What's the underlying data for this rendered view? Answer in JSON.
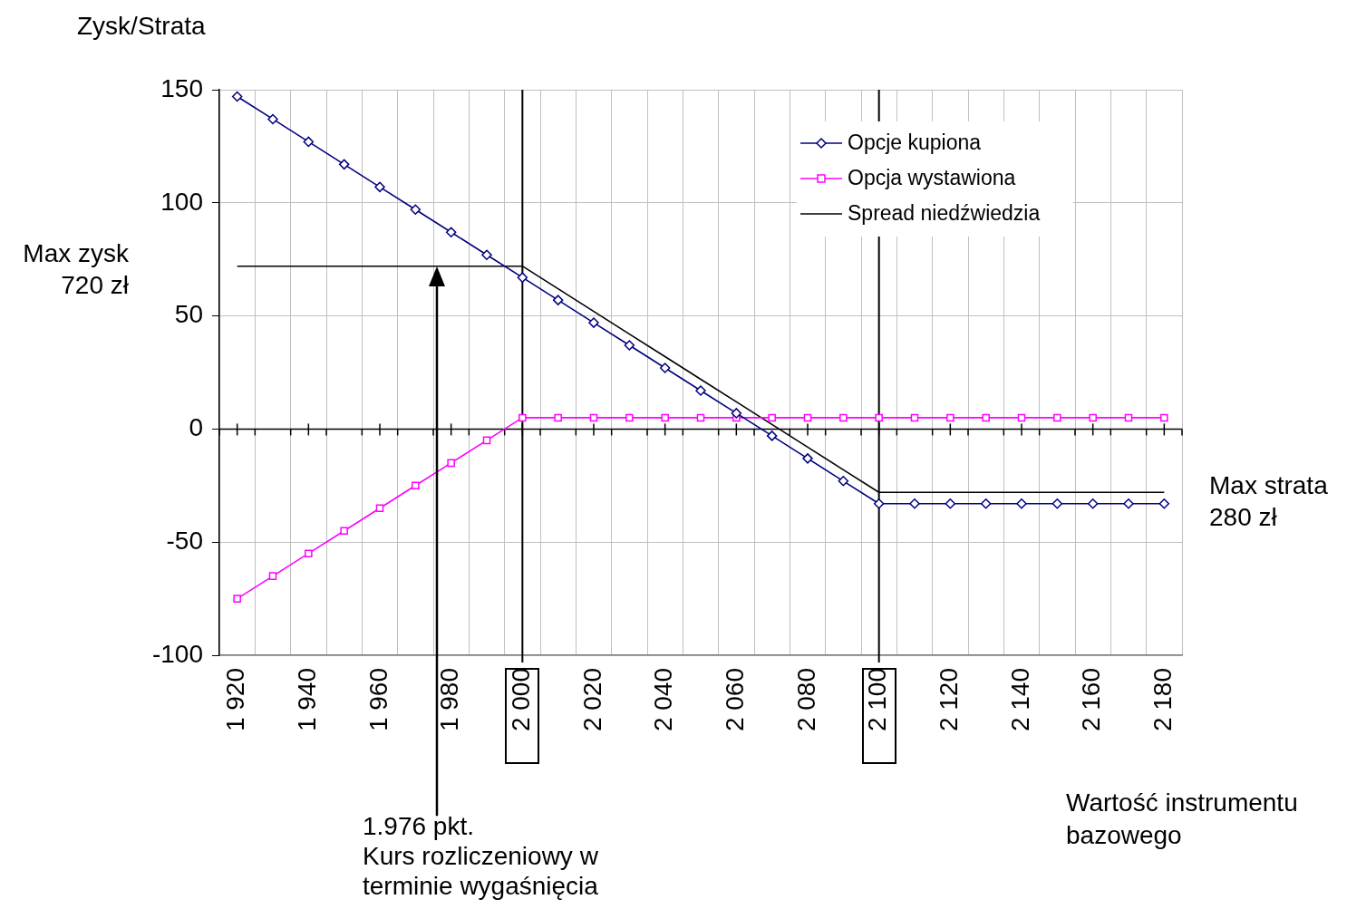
{
  "chart_data": {
    "type": "line",
    "ylabel": "Zysk/Strata",
    "xlabel": "Wartość instrumentu bazowego",
    "x": [
      1920,
      1930,
      1940,
      1950,
      1960,
      1970,
      1980,
      1990,
      2000,
      2010,
      2020,
      2030,
      2040,
      2050,
      2060,
      2070,
      2080,
      2090,
      2100,
      2110,
      2120,
      2130,
      2140,
      2150,
      2160,
      2170,
      2180
    ],
    "series": [
      {
        "name": "Opcje kupiona",
        "color": "#000080",
        "marker": "diamond",
        "values": [
          147,
          137,
          127,
          117,
          107,
          97,
          87,
          77,
          67,
          57,
          47,
          37,
          27,
          17,
          7,
          -3,
          -13,
          -23,
          -33,
          -33,
          -33,
          -33,
          -33,
          -33,
          -33,
          -33,
          -33
        ]
      },
      {
        "name": "Opcja wystawiona",
        "color": "#ff00ff",
        "marker": "square",
        "values": [
          -75,
          -65,
          -55,
          -45,
          -35,
          -25,
          -15,
          -5,
          5,
          5,
          5,
          5,
          5,
          5,
          5,
          5,
          5,
          5,
          5,
          5,
          5,
          5,
          5,
          5,
          5,
          5,
          5
        ]
      },
      {
        "name": "Spread niedźwiedzia",
        "color": "#000000",
        "marker": "none",
        "values": [
          72,
          72,
          72,
          72,
          72,
          72,
          72,
          72,
          72,
          62,
          52,
          42,
          32,
          22,
          12,
          2,
          -8,
          -18,
          -28,
          -28,
          -28,
          -28,
          -28,
          -28,
          -28,
          -28,
          -28
        ]
      }
    ],
    "xlim": [
      1915,
      2185
    ],
    "xticks": [
      {
        "value": 1915,
        "label": null
      },
      {
        "value": 1920,
        "label": "1 920"
      },
      {
        "value": 1925,
        "label": null
      },
      {
        "value": 1935,
        "label": null
      },
      {
        "value": 1940,
        "label": "1 940"
      },
      {
        "value": 1945,
        "label": null
      },
      {
        "value": 1955,
        "label": null
      },
      {
        "value": 1960,
        "label": "1 960"
      },
      {
        "value": 1965,
        "label": null
      },
      {
        "value": 1975,
        "label": null
      },
      {
        "value": 1980,
        "label": "1 980"
      },
      {
        "value": 1985,
        "label": null
      },
      {
        "value": 1995,
        "label": null
      },
      {
        "value": 2000,
        "label": "2 000"
      },
      {
        "value": 2005,
        "label": null
      },
      {
        "value": 2015,
        "label": null
      },
      {
        "value": 2020,
        "label": "2 020"
      },
      {
        "value": 2025,
        "label": null
      },
      {
        "value": 2035,
        "label": null
      },
      {
        "value": 2040,
        "label": "2 040"
      },
      {
        "value": 2045,
        "label": null
      },
      {
        "value": 2055,
        "label": null
      },
      {
        "value": 2060,
        "label": "2 060"
      },
      {
        "value": 2065,
        "label": null
      },
      {
        "value": 2075,
        "label": null
      },
      {
        "value": 2080,
        "label": "2 080"
      },
      {
        "value": 2085,
        "label": null
      },
      {
        "value": 2095,
        "label": null
      },
      {
        "value": 2100,
        "label": "2 100"
      },
      {
        "value": 2105,
        "label": null
      },
      {
        "value": 2115,
        "label": null
      },
      {
        "value": 2120,
        "label": "2 120"
      },
      {
        "value": 2125,
        "label": null
      },
      {
        "value": 2135,
        "label": null
      },
      {
        "value": 2140,
        "label": "2 140"
      },
      {
        "value": 2145,
        "label": null
      },
      {
        "value": 2155,
        "label": null
      },
      {
        "value": 2160,
        "label": "2 160"
      },
      {
        "value": 2165,
        "label": null
      },
      {
        "value": 2175,
        "label": null
      },
      {
        "value": 2180,
        "label": "2 180"
      },
      {
        "value": 2185,
        "label": null
      }
    ],
    "ylim": [
      -100,
      150
    ],
    "yticks": [
      -100,
      -50,
      0,
      50,
      100,
      150
    ],
    "grid": true,
    "legend": "top right",
    "line_style": "solid",
    "ref_lines": [
      {
        "axis": "x",
        "value": 2000,
        "color": "#000000"
      },
      {
        "axis": "x",
        "value": 2100,
        "color": "#000000"
      }
    ],
    "annotations": [
      "Max zysk\n720 zł",
      "Max strata\n280 zł",
      "1.976 pkt.\nKurs rozliczeniowy w\nterminie wygaśnięcia"
    ]
  }
}
